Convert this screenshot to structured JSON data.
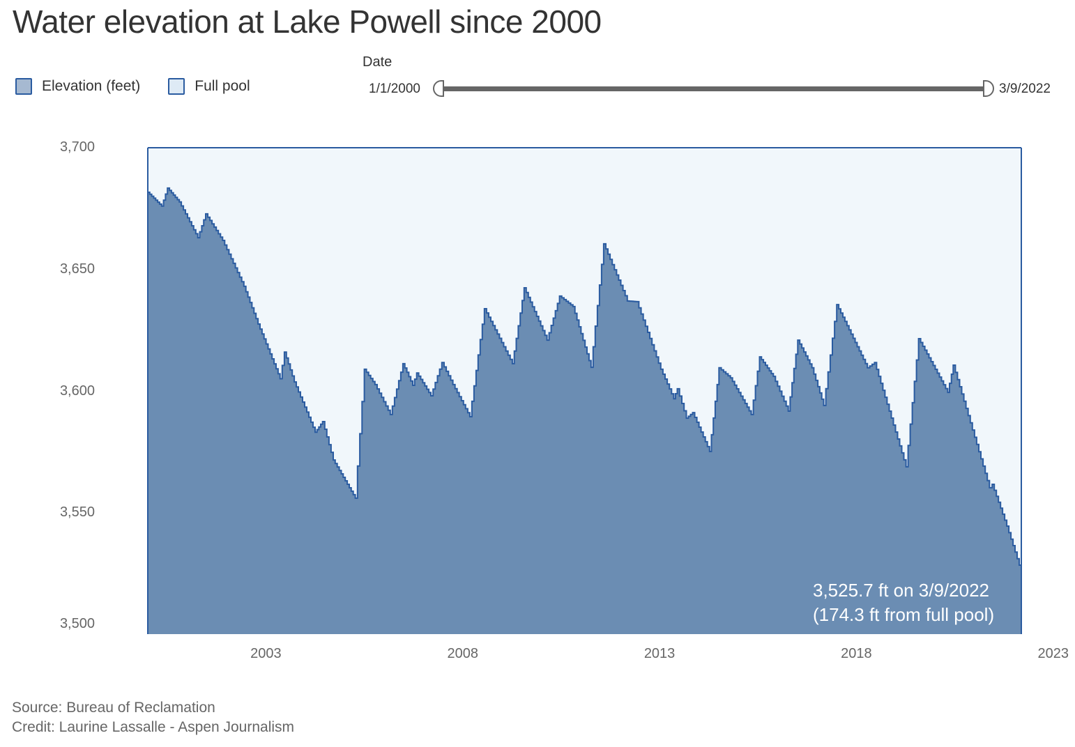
{
  "colors": {
    "elevation_fill": "#6b8db3",
    "elevation_line": "#2a5ba0",
    "full_pool_fill": "#f1f7fb",
    "legend_elevation": "#a6b9d1",
    "legend_full_pool": "#deeaf5",
    "axis_text": "#666666",
    "slider_track": "#666666"
  },
  "legend": [
    {
      "label": "Elevation (feet)"
    },
    {
      "label": "Full pool"
    }
  ],
  "date_filter": {
    "label": "Date",
    "start": "1/1/2000",
    "end": "3/9/2022"
  },
  "annotation": {
    "line1": "3,525.7 ft on 3/9/2022",
    "line2": "(174.3 ft from full pool)"
  },
  "footer": {
    "source": "Source: Bureau of Reclamation",
    "credit": "Credit: Laurine Lassalle - Aspen Journalism"
  },
  "chart_data": {
    "type": "area",
    "title": "Water elevation at Lake Powell since 2000",
    "xlabel": "",
    "ylabel": "",
    "xlim": [
      2000.0,
      2022.19
    ],
    "ylim": [
      3500,
      3700
    ],
    "full_pool": 3700,
    "x_ticks": [
      "2003",
      "2008",
      "2013",
      "2018",
      "2023"
    ],
    "x_tick_values": [
      2003,
      2008,
      2013,
      2018,
      2023
    ],
    "y_ticks": [
      "3,700",
      "3,650",
      "3,600",
      "3,550",
      "3,500"
    ],
    "y_tick_values": [
      3700,
      3650,
      3600,
      3550,
      3500
    ],
    "grid": false,
    "legend_position": "top-left",
    "series": [
      {
        "name": "Elevation (feet)",
        "x": [
          2000.0,
          2000.35,
          2000.5,
          2000.8,
          2001.27,
          2001.47,
          2001.9,
          2002.44,
          2002.8,
          2003.36,
          2003.47,
          2003.72,
          2004.25,
          2004.44,
          2004.71,
          2005.27,
          2005.5,
          2005.77,
          2006.16,
          2006.48,
          2006.73,
          2006.83,
          2007.19,
          2007.47,
          2007.75,
          2008.18,
          2008.55,
          2009.26,
          2009.56,
          2010.14,
          2010.46,
          2010.8,
          2011.26,
          2011.58,
          2012.18,
          2012.42,
          2013.03,
          2013.36,
          2013.45,
          2013.68,
          2013.84,
          2014.27,
          2014.51,
          2014.8,
          2015.33,
          2015.54,
          2015.89,
          2016.27,
          2016.51,
          2016.87,
          2017.17,
          2017.5,
          2018.28,
          2018.46,
          2019.26,
          2019.58,
          2020.32,
          2020.46,
          2021.38,
          2021.45,
          2021.82,
          2022.19
        ],
        "values": [
          3681.7,
          3676.0,
          3683.4,
          3677.7,
          3663.0,
          3672.8,
          3661.9,
          3643.0,
          3627.5,
          3605.0,
          3616.0,
          3603.7,
          3583.0,
          3587.4,
          3571.6,
          3555.9,
          3608.9,
          3602.6,
          3590.3,
          3611.2,
          3602.3,
          3607.4,
          3598.0,
          3611.7,
          3602.6,
          3589.4,
          3633.8,
          3611.2,
          3642.4,
          3620.9,
          3639.0,
          3634.7,
          3609.7,
          3660.5,
          3637.0,
          3636.7,
          3608.9,
          3596.8,
          3600.9,
          3588.8,
          3591.1,
          3575.1,
          3609.5,
          3605.4,
          3590.3,
          3614.0,
          3606.0,
          3591.7,
          3620.9,
          3609.5,
          3594.0,
          3635.5,
          3609.5,
          3611.7,
          3568.8,
          3621.5,
          3599.4,
          3610.6,
          3560.2,
          3561.6,
          3544.4,
          3525.7
        ]
      }
    ]
  }
}
